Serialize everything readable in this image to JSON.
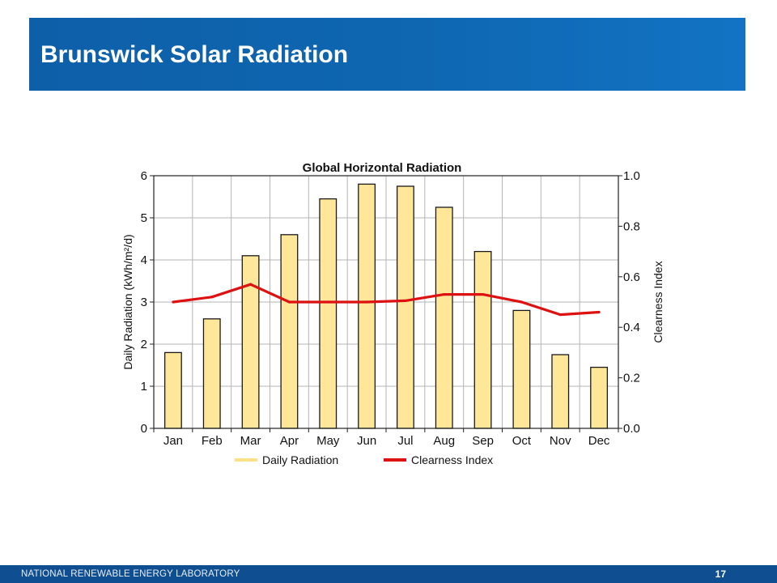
{
  "slide": {
    "title": "Brunswick Solar Radiation",
    "footer_org": "NATIONAL RENEWABLE ENERGY LABORATORY",
    "page_number": "17"
  },
  "colors": {
    "title_bar": "#0f67b1",
    "footer": "#0f4f91",
    "bar_fill": "#ffe79a",
    "bar_legend": "#ffe08a",
    "clearness_line": "#dd1111"
  },
  "chart_data": {
    "type": "bar",
    "title": "Global Horizontal Radiation",
    "categories": [
      "Jan",
      "Feb",
      "Mar",
      "Apr",
      "May",
      "Jun",
      "Jul",
      "Aug",
      "Sep",
      "Oct",
      "Nov",
      "Dec"
    ],
    "series": [
      {
        "name": "Daily Radiation",
        "type": "bar",
        "axis": "left",
        "values": [
          1.8,
          2.6,
          4.1,
          4.6,
          5.45,
          5.8,
          5.75,
          5.25,
          4.2,
          2.8,
          1.75,
          1.45
        ]
      },
      {
        "name": "Clearness Index",
        "type": "line",
        "axis": "right",
        "values": [
          0.5,
          0.52,
          0.57,
          0.5,
          0.5,
          0.5,
          0.505,
          0.53,
          0.53,
          0.5,
          0.45,
          0.46
        ]
      }
    ],
    "ylabel": "Daily Radiation (kWh/m²/d)",
    "ylim": [
      0,
      6
    ],
    "yticks": [
      "0",
      "1",
      "2",
      "3",
      "4",
      "5",
      "6"
    ],
    "y2label": "Clearness Index",
    "y2lim": [
      0,
      1
    ],
    "y2ticks": [
      "0.0",
      "0.2",
      "0.4",
      "0.6",
      "0.8",
      "1.0"
    ],
    "grid": true,
    "legend_position": "bottom"
  }
}
